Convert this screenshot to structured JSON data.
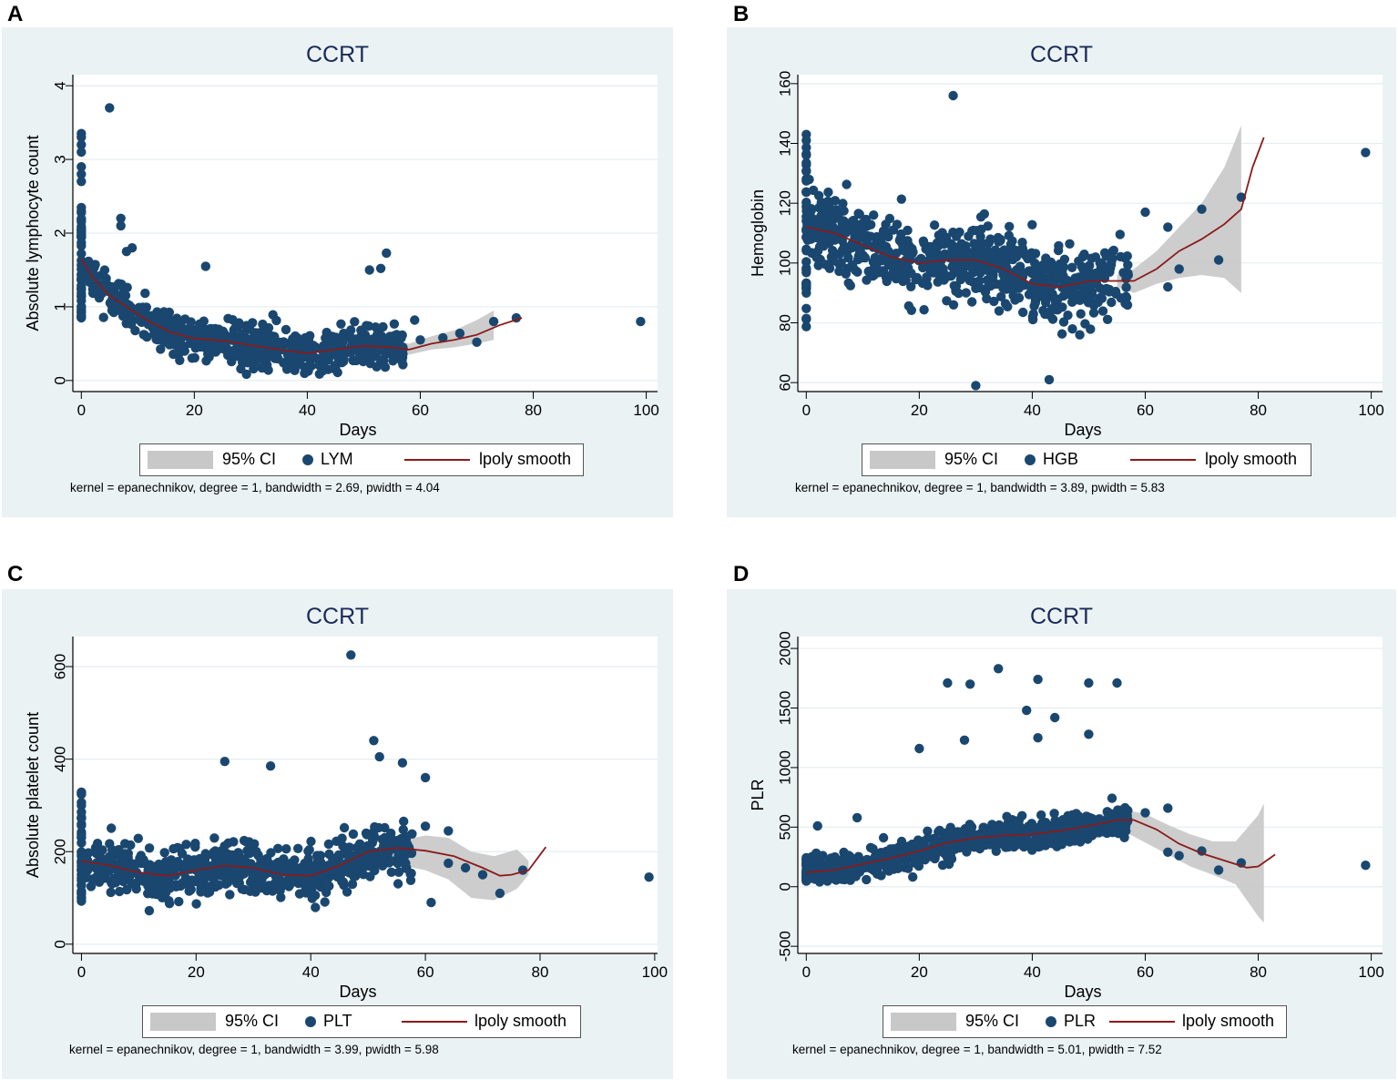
{
  "colors": {
    "panel_bg": "#eaf2f3",
    "marker": "#1a476f",
    "smooth": "#8b1a1a",
    "ci_band": "#c8c8c8",
    "title": "#1a2a5a"
  },
  "chart_data": [
    {
      "panel": "A",
      "type": "scatter",
      "title": "CCRT",
      "xlabel": "Days",
      "ylabel": "Absolute lymphocyte count",
      "xlim": [
        -1.5,
        102
      ],
      "ylim": [
        -0.15,
        4.15
      ],
      "xticks": [
        "0",
        "20",
        "40",
        "60",
        "80",
        "100"
      ],
      "yticks": [
        "0",
        "1",
        "2",
        "3",
        "4"
      ],
      "legend": {
        "ci": "95% CI",
        "series": "LYM",
        "smooth": "lpoly smooth"
      },
      "note": "kernel = epanechnikov, degree = 1, bandwidth = 2.69, pwidth = 4.04",
      "smooth": {
        "x": [
          0,
          2,
          5,
          8,
          12,
          16,
          20,
          25,
          30,
          35,
          40,
          45,
          50,
          55,
          58,
          62,
          66,
          70,
          74,
          78
        ],
        "y": [
          1.65,
          1.4,
          1.15,
          1.0,
          0.8,
          0.65,
          0.57,
          0.54,
          0.48,
          0.42,
          0.37,
          0.42,
          0.47,
          0.45,
          0.42,
          0.5,
          0.55,
          0.62,
          0.75,
          0.85
        ]
      },
      "ci_band": {
        "x": [
          55,
          58,
          62,
          66,
          70,
          73
        ],
        "lo": [
          0.35,
          0.35,
          0.42,
          0.45,
          0.5,
          0.55
        ],
        "hi": [
          0.55,
          0.5,
          0.6,
          0.68,
          0.82,
          0.95
        ]
      },
      "gen": {
        "zero_n": 45,
        "zero_lo": 0.8,
        "zero_hi": 2.4,
        "dense_n": 650,
        "dense_xmax": 57,
        "spread": 0.45,
        "floor": 0.08,
        "seed": 11
      },
      "points": [
        [
          0,
          3.35
        ],
        [
          0,
          3.3
        ],
        [
          0,
          3.2
        ],
        [
          0,
          3.1
        ],
        [
          0,
          2.9
        ],
        [
          0,
          2.8
        ],
        [
          0,
          2.7
        ],
        [
          5,
          3.7
        ],
        [
          7,
          2.2
        ],
        [
          7,
          2.1
        ],
        [
          9,
          1.8
        ],
        [
          8,
          1.75
        ],
        [
          22,
          1.55
        ],
        [
          54,
          1.73
        ],
        [
          51,
          1.5
        ],
        [
          53,
          1.52
        ],
        [
          59,
          0.82
        ],
        [
          60,
          0.55
        ],
        [
          64,
          0.58
        ],
        [
          67,
          0.64
        ],
        [
          70,
          0.52
        ],
        [
          73,
          0.8
        ],
        [
          77,
          0.85
        ],
        [
          99,
          0.8
        ]
      ]
    },
    {
      "panel": "B",
      "type": "scatter",
      "title": "CCRT",
      "xlabel": "Days",
      "ylabel": "Hemoglobin",
      "xlim": [
        -1.5,
        102
      ],
      "ylim": [
        57,
        163
      ],
      "xticks": [
        "0",
        "20",
        "40",
        "60",
        "80",
        "100"
      ],
      "yticks": [
        "60",
        "80",
        "100",
        "120",
        "140",
        "160"
      ],
      "legend": {
        "ci": "95% CI",
        "series": "HGB",
        "smooth": "lpoly smooth"
      },
      "note": "kernel = epanechnikov, degree = 1, bandwidth = 3.89, pwidth = 5.83",
      "smooth": {
        "x": [
          0,
          5,
          10,
          15,
          20,
          25,
          30,
          35,
          40,
          45,
          50,
          55,
          58,
          62,
          66,
          70,
          74,
          77,
          79,
          81
        ],
        "y": [
          112,
          110,
          106,
          102,
          100,
          101,
          101,
          98,
          93,
          92,
          94,
          94,
          94,
          98,
          104,
          108,
          113,
          118,
          132,
          142
        ]
      },
      "ci_band": {
        "x": [
          55,
          58,
          62,
          66,
          70,
          74,
          77
        ],
        "lo": [
          92,
          90,
          93,
          95,
          96,
          95,
          90
        ],
        "hi": [
          96,
          98,
          104,
          112,
          120,
          132,
          146
        ]
      },
      "gen": {
        "zero_n": 40,
        "zero_lo": 76,
        "zero_hi": 143,
        "dense_n": 700,
        "dense_xmax": 57,
        "spread": 20,
        "floor": 60,
        "seed": 23
      },
      "points": [
        [
          26,
          156
        ],
        [
          0,
          143
        ],
        [
          0,
          141
        ],
        [
          30,
          59
        ],
        [
          43,
          61
        ],
        [
          60,
          117
        ],
        [
          64,
          112
        ],
        [
          64,
          92
        ],
        [
          66,
          98
        ],
        [
          70,
          118
        ],
        [
          73,
          101
        ],
        [
          77,
          122
        ],
        [
          99,
          137
        ]
      ]
    },
    {
      "panel": "C",
      "type": "scatter",
      "title": "CCRT",
      "xlabel": "Days",
      "ylabel": "Absolute platelet count",
      "xlim": [
        -1.5,
        100.5
      ],
      "ylim": [
        -20,
        665
      ],
      "xticks": [
        "0",
        "20",
        "40",
        "60",
        "80",
        "100"
      ],
      "yticks": [
        "0",
        "200",
        "400",
        "600"
      ],
      "legend": {
        "ci": "95% CI",
        "series": "PLT",
        "smooth": "lpoly smooth"
      },
      "note": "kernel = epanechnikov, degree = 1, bandwidth = 3.99, pwidth = 5.98",
      "smooth": {
        "x": [
          0,
          5,
          10,
          15,
          20,
          25,
          30,
          35,
          40,
          45,
          50,
          55,
          60,
          65,
          70,
          73,
          75,
          78,
          81
        ],
        "y": [
          180,
          170,
          155,
          148,
          160,
          170,
          165,
          150,
          148,
          170,
          200,
          208,
          202,
          190,
          165,
          148,
          150,
          160,
          210
        ]
      },
      "ci_band": {
        "x": [
          52,
          56,
          60,
          64,
          68,
          72,
          76,
          78
        ],
        "lo": [
          170,
          170,
          160,
          140,
          100,
          95,
          120,
          150
        ],
        "hi": [
          230,
          225,
          235,
          230,
          200,
          190,
          205,
          180
        ]
      },
      "gen": {
        "zero_n": 40,
        "zero_lo": 90,
        "zero_hi": 330,
        "dense_n": 650,
        "dense_xmax": 58,
        "spread": 90,
        "floor": 25,
        "seed": 37
      },
      "points": [
        [
          47,
          625
        ],
        [
          51,
          440
        ],
        [
          52,
          405
        ],
        [
          25,
          395
        ],
        [
          56,
          392
        ],
        [
          33,
          385
        ],
        [
          60,
          360
        ],
        [
          60,
          255
        ],
        [
          61,
          90
        ],
        [
          64,
          245
        ],
        [
          64,
          175
        ],
        [
          67,
          165
        ],
        [
          70,
          150
        ],
        [
          73,
          110
        ],
        [
          77,
          160
        ],
        [
          99,
          145
        ]
      ]
    },
    {
      "panel": "D",
      "type": "scatter",
      "title": "CCRT",
      "xlabel": "Days",
      "ylabel": "PLR",
      "xlim": [
        -1.5,
        102
      ],
      "ylim": [
        -560,
        2100
      ],
      "xticks": [
        "0",
        "20",
        "40",
        "60",
        "80",
        "100"
      ],
      "yticks": [
        "-500",
        "0",
        "500",
        "1000",
        "1500",
        "2000"
      ],
      "legend": {
        "ci": "95% CI",
        "series": "PLR",
        "smooth": "lpoly smooth"
      },
      "note": "kernel = epanechnikov, degree = 1, bandwidth = 5.01, pwidth = 7.52",
      "smooth": {
        "x": [
          0,
          5,
          10,
          15,
          20,
          25,
          30,
          35,
          40,
          45,
          50,
          55,
          58,
          62,
          66,
          70,
          74,
          78,
          80,
          83
        ],
        "y": [
          120,
          140,
          190,
          240,
          300,
          370,
          410,
          430,
          440,
          470,
          510,
          560,
          560,
          480,
          360,
          280,
          220,
          160,
          170,
          270
        ]
      },
      "ci_band": {
        "x": [
          52,
          56,
          60,
          64,
          68,
          72,
          76,
          80,
          81
        ],
        "lo": [
          470,
          470,
          370,
          270,
          170,
          100,
          20,
          -250,
          -300
        ],
        "hi": [
          610,
          650,
          610,
          520,
          440,
          380,
          380,
          600,
          700
        ]
      },
      "gen": {
        "zero_n": 30,
        "zero_lo": 40,
        "zero_hi": 260,
        "dense_n": 650,
        "dense_xmax": 57,
        "spread": 220,
        "floor": 40,
        "seed": 53
      },
      "points": [
        [
          34,
          1830
        ],
        [
          25,
          1710
        ],
        [
          29,
          1700
        ],
        [
          41,
          1740
        ],
        [
          50,
          1710
        ],
        [
          55,
          1710
        ],
        [
          39,
          1480
        ],
        [
          44,
          1420
        ],
        [
          50,
          1280
        ],
        [
          41,
          1250
        ],
        [
          28,
          1230
        ],
        [
          20,
          1160
        ],
        [
          9,
          580
        ],
        [
          2,
          510
        ],
        [
          60,
          620
        ],
        [
          64,
          660
        ],
        [
          64,
          290
        ],
        [
          66,
          260
        ],
        [
          70,
          300
        ],
        [
          73,
          140
        ],
        [
          77,
          200
        ],
        [
          99,
          180
        ]
      ]
    }
  ]
}
